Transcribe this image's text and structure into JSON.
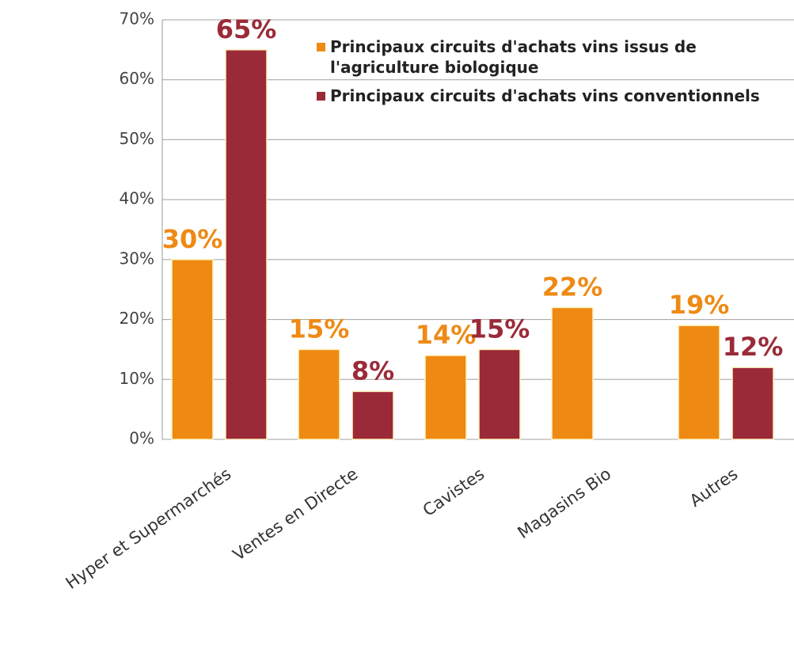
{
  "chart_data": {
    "type": "bar",
    "categories": [
      "Hyper et Supermarchés",
      "Ventes en Directe",
      "Cavistes",
      "Magasins Bio",
      "Autres"
    ],
    "series": [
      {
        "name": "Principaux circuits d'achats vins issus de l'agriculture biologique",
        "color": "#ee8a14",
        "values": [
          30,
          15,
          14,
          22,
          19
        ],
        "value_labels": [
          "30%",
          "15%",
          "14%",
          "22%",
          "19%"
        ]
      },
      {
        "name": "Principaux circuits d'achats vins conventionnels",
        "color": "#9b2a38",
        "values": [
          65,
          8,
          15,
          null,
          12
        ],
        "value_labels": [
          "65%",
          "8%",
          "15%",
          null,
          "12%"
        ]
      }
    ],
    "ylim": [
      0,
      70
    ],
    "yticks": [
      {
        "value": 0,
        "label": "0%"
      },
      {
        "value": 10,
        "label": "10%"
      },
      {
        "value": 20,
        "label": "20%"
      },
      {
        "value": 30,
        "label": "30%"
      },
      {
        "value": 40,
        "label": "40%"
      },
      {
        "value": 50,
        "label": "50%"
      },
      {
        "value": 60,
        "label": "60%"
      },
      {
        "value": 70,
        "label": "70%"
      }
    ],
    "grid": true,
    "legend": "top-right"
  }
}
